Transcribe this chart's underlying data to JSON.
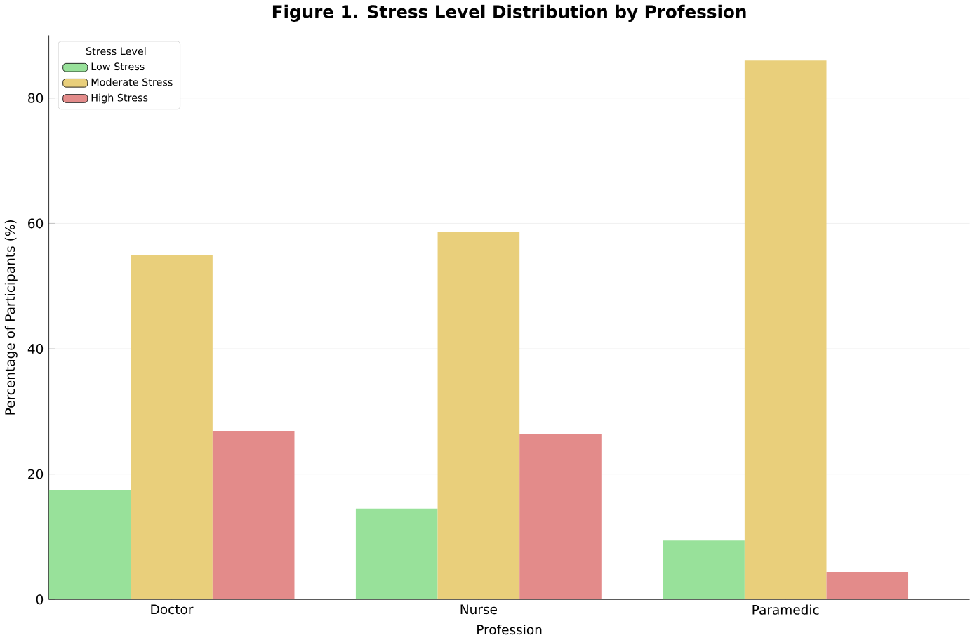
{
  "chart_data": {
    "type": "bar",
    "title": "Figure 1. Stress Level Distribution by Profession",
    "xlabel": "Profession",
    "ylabel": "Percentage of Participants (%)",
    "legend_title": "Stress Level",
    "categories": [
      "Doctor",
      "Nurse",
      "Paramedic"
    ],
    "series": [
      {
        "name": "Low Stress",
        "color": "#98e19a",
        "values": [
          17.5,
          14.5,
          9.4
        ]
      },
      {
        "name": "Moderate Stress",
        "color": "#e9cf7b",
        "values": [
          55,
          58.6,
          86
        ]
      },
      {
        "name": "High Stress",
        "color": "#e38b8a",
        "values": [
          26.9,
          26.4,
          4.4
        ]
      }
    ],
    "ylim": [
      0,
      90
    ],
    "yticks": [
      0,
      20,
      40,
      60,
      80
    ],
    "grid": "y",
    "legend": "top left"
  }
}
